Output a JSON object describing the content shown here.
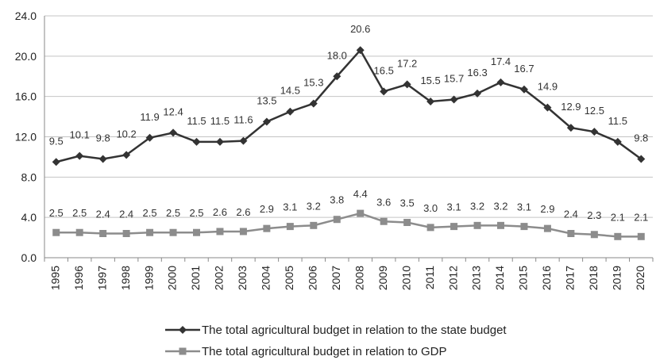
{
  "chart_data": {
    "type": "line",
    "title": "",
    "xlabel": "",
    "ylabel": "",
    "ylim": [
      0,
      24
    ],
    "y_ticks": [
      "0.0",
      "4.0",
      "8.0",
      "12.0",
      "16.0",
      "20.0",
      "24.0"
    ],
    "grid": "horizontal",
    "legend_position": "bottom",
    "categories": [
      "1995",
      "1996",
      "1997",
      "1998",
      "1999",
      "2000",
      "2001",
      "2002",
      "2003",
      "2004",
      "2005",
      "2006",
      "2007",
      "2008",
      "2009",
      "2010",
      "2011",
      "2012",
      "2013",
      "2014",
      "2015",
      "2016",
      "2017",
      "2018",
      "2019",
      "2020"
    ],
    "series": [
      {
        "name": "The total agricultural budget in relation to the state budget",
        "marker": "diamond",
        "color": "#333333",
        "values": [
          9.5,
          10.1,
          9.8,
          10.2,
          11.9,
          12.4,
          11.5,
          11.5,
          11.6,
          13.5,
          14.5,
          15.3,
          18.0,
          20.6,
          16.5,
          17.2,
          15.5,
          15.7,
          16.3,
          17.4,
          16.7,
          14.9,
          12.9,
          12.5,
          11.5,
          9.8
        ],
        "labels": [
          "9.5",
          "10.1",
          "9.8",
          "10.2",
          "11.9",
          "12.4",
          "11.5",
          "11.5",
          "11.6",
          "13.5",
          "14.5",
          "15.3",
          "18.0",
          "20.6",
          "16.5",
          "17.2",
          "15.5",
          "15.7",
          "16.3",
          "17.4",
          "16.7",
          "14.9",
          "12.9",
          "12.5",
          "11.5",
          "9.8"
        ]
      },
      {
        "name": "The total agricultural budget in relation to GDP",
        "marker": "square",
        "color": "#8c8c8c",
        "values": [
          2.5,
          2.5,
          2.4,
          2.4,
          2.5,
          2.5,
          2.5,
          2.6,
          2.6,
          2.9,
          3.1,
          3.2,
          3.8,
          4.4,
          3.6,
          3.5,
          3.0,
          3.1,
          3.2,
          3.2,
          3.1,
          2.9,
          2.4,
          2.3,
          2.1,
          2.1
        ],
        "labels": [
          "2.5",
          "2.5",
          "2.4",
          "2.4",
          "2.5",
          "2.5",
          "2.5",
          "2.6",
          "2.6",
          "2.9",
          "3.1",
          "3.2",
          "3.8",
          "4.4",
          "3.6",
          "3.5",
          "3.0",
          "3.1",
          "3.2",
          "3.2",
          "3.1",
          "2.9",
          "2.4",
          "2.3",
          "2.1",
          "2.1"
        ]
      }
    ]
  }
}
